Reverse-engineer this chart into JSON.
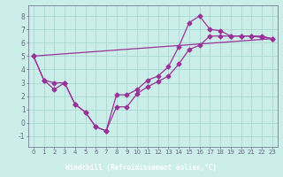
{
  "xlabel": "Windchill (Refroidissement éolien,°C)",
  "bg_color": "#cceee8",
  "xlabel_bg": "#7b6b9b",
  "line_color": "#993399",
  "grid_color": "#aad8d4",
  "axis_color": "#666688",
  "xlim": [
    -0.5,
    23.5
  ],
  "ylim": [
    -1.8,
    8.8
  ],
  "xticks": [
    0,
    1,
    2,
    3,
    4,
    5,
    6,
    7,
    8,
    9,
    10,
    11,
    12,
    13,
    14,
    15,
    16,
    17,
    18,
    19,
    20,
    21,
    22,
    23
  ],
  "yticks": [
    -1,
    0,
    1,
    2,
    3,
    4,
    5,
    6,
    7,
    8
  ],
  "line1_x": [
    0,
    1,
    2,
    3,
    4,
    5,
    6,
    7,
    8,
    9,
    10,
    11,
    12,
    13,
    14,
    15,
    16,
    17,
    18,
    19,
    20,
    21,
    22,
    23
  ],
  "line1_y": [
    5.0,
    3.2,
    3.0,
    3.0,
    1.4,
    0.8,
    -0.3,
    -0.6,
    1.2,
    1.2,
    2.2,
    2.7,
    3.1,
    3.5,
    4.4,
    5.5,
    5.8,
    6.5,
    6.5,
    6.5,
    6.5,
    6.5,
    6.5,
    6.3
  ],
  "line2_x": [
    0,
    1,
    2,
    3,
    4,
    5,
    6,
    7,
    8,
    9,
    10,
    11,
    12,
    13,
    14,
    15,
    16,
    17,
    18,
    19,
    20,
    21,
    22,
    23
  ],
  "line2_y": [
    5.0,
    3.2,
    2.5,
    3.0,
    1.4,
    0.8,
    -0.3,
    -0.6,
    2.1,
    2.1,
    2.5,
    3.2,
    3.5,
    4.2,
    5.7,
    7.5,
    8.0,
    7.0,
    6.9,
    6.5,
    6.5,
    6.5,
    6.4,
    6.3
  ],
  "line3_x": [
    0,
    23
  ],
  "line3_y": [
    5.0,
    6.3
  ],
  "marker_size": 2.5,
  "linewidth": 0.9,
  "tick_fontsize": 5.0,
  "xlabel_fontsize": 5.5
}
